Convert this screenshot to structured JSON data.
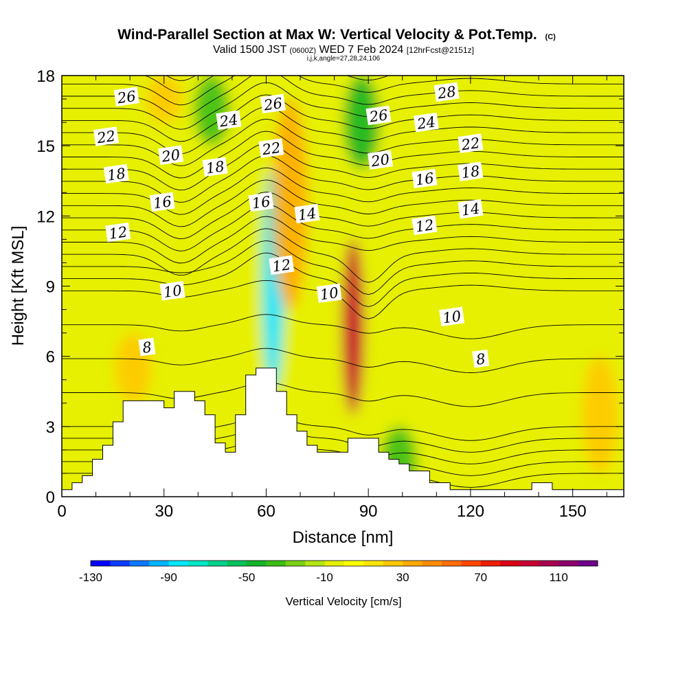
{
  "chart_data": {
    "type": "heatmap",
    "title": "Wind-Parallel Section at Max W: Vertical Velocity & Pot.Temp.",
    "title_mark": "(C)",
    "valid_prefix": "Valid 1500 JST",
    "valid_utc": "(0600Z)",
    "valid_date": "WED 7 Feb 2024",
    "forecast": "[12hrFcst@2151z]",
    "subtitle3": "i,j,k,angle=27,28,24,106",
    "xlabel": "Distance [nm]",
    "ylabel": "Height [Kft MSL]",
    "xlim": [
      0,
      165
    ],
    "ylim": [
      0,
      18
    ],
    "x_ticks": [
      "0",
      "30",
      "60",
      "90",
      "120",
      "150"
    ],
    "y_ticks": [
      "0",
      "3",
      "6",
      "9",
      "12",
      "15",
      "18"
    ],
    "colorbar": {
      "label": "Vertical Velocity [cm/s]",
      "tick_labels": [
        "-130",
        "-90",
        "-50",
        "-10",
        "30",
        "70",
        "110"
      ],
      "colors": [
        "#0000ff",
        "#0a3cff",
        "#0a78ff",
        "#00b4ff",
        "#00e6ff",
        "#00e6c8",
        "#00d28c",
        "#00c35a",
        "#14b428",
        "#3cbe14",
        "#78d214",
        "#b4e614",
        "#e6f000",
        "#ffff00",
        "#ffe600",
        "#ffc800",
        "#ffaa00",
        "#ff8c00",
        "#ff6e00",
        "#ff4600",
        "#f01e00",
        "#dc0014",
        "#c80032",
        "#aa0050",
        "#8c006e",
        "#6e008c"
      ]
    },
    "vertical_velocity_field": {
      "background_cm_s": -5,
      "features": [
        {
          "x": 62,
          "ytop": 14,
          "ybot": 4.5,
          "w_cm_s": -90
        },
        {
          "x": 85.5,
          "ytop": 11,
          "ybot": 3.5,
          "w_cm_s": 90
        },
        {
          "x": 67,
          "ytop": 17,
          "ybot": 8,
          "w_cm_s": 30
        },
        {
          "x": 99,
          "ytop": 3,
          "ybot": 0,
          "w_cm_s": -35
        },
        {
          "x": 21,
          "ytop": 7,
          "ybot": 4,
          "w_cm_s": 25
        },
        {
          "x": 88,
          "ytop": 18,
          "ybot": 14,
          "w_cm_s": -45
        },
        {
          "x": 44,
          "ytop": 18,
          "ybot": 15,
          "w_cm_s": -40
        },
        {
          "x": 30,
          "ytop": 18,
          "ybot": 16,
          "w_cm_s": 25
        },
        {
          "x": 158,
          "ytop": 6,
          "ybot": 1,
          "w_cm_s": 20
        }
      ]
    },
    "potential_temperature_contour_labels": [
      {
        "value": "26",
        "x": 19,
        "y": 17.1
      },
      {
        "value": "22",
        "x": 13,
        "y": 15.4
      },
      {
        "value": "24",
        "x": 49,
        "y": 16.1
      },
      {
        "value": "26",
        "x": 62,
        "y": 16.8
      },
      {
        "value": "20",
        "x": 32,
        "y": 14.6
      },
      {
        "value": "22",
        "x": 61.5,
        "y": 14.9
      },
      {
        "value": "18",
        "x": 16,
        "y": 13.8
      },
      {
        "value": "18",
        "x": 45,
        "y": 14.1
      },
      {
        "value": "16",
        "x": 29.5,
        "y": 12.6
      },
      {
        "value": "16",
        "x": 58.5,
        "y": 12.6
      },
      {
        "value": "14",
        "x": 72,
        "y": 12.1
      },
      {
        "value": "12",
        "x": 16.5,
        "y": 11.3
      },
      {
        "value": "12",
        "x": 64.5,
        "y": 9.9
      },
      {
        "value": "10",
        "x": 32.5,
        "y": 8.8
      },
      {
        "value": "10",
        "x": 78.5,
        "y": 8.7
      },
      {
        "value": "8",
        "x": 25,
        "y": 6.4
      },
      {
        "value": "26",
        "x": 93,
        "y": 16.3
      },
      {
        "value": "28",
        "x": 113,
        "y": 17.3
      },
      {
        "value": "24",
        "x": 107,
        "y": 16
      },
      {
        "value": "22",
        "x": 120,
        "y": 15.1
      },
      {
        "value": "20",
        "x": 93.5,
        "y": 14.4
      },
      {
        "value": "18",
        "x": 120,
        "y": 13.9
      },
      {
        "value": "16",
        "x": 106.5,
        "y": 13.6
      },
      {
        "value": "14",
        "x": 120,
        "y": 12.3
      },
      {
        "value": "12",
        "x": 106.5,
        "y": 11.6
      },
      {
        "value": "10",
        "x": 114.5,
        "y": 7.7
      },
      {
        "value": "8",
        "x": 123,
        "y": 5.9
      }
    ],
    "terrain_kft": [
      [
        0,
        0.3
      ],
      [
        3,
        0.6
      ],
      [
        6,
        0.9
      ],
      [
        9,
        1.6
      ],
      [
        12,
        2.2
      ],
      [
        15,
        3.2
      ],
      [
        18,
        4.1
      ],
      [
        30,
        3.8
      ],
      [
        33,
        4.5
      ],
      [
        39,
        4.1
      ],
      [
        42,
        3.5
      ],
      [
        45,
        2.3
      ],
      [
        48,
        1.9
      ],
      [
        51,
        3.5
      ],
      [
        54,
        5.2
      ],
      [
        57,
        5.5
      ],
      [
        63,
        4.5
      ],
      [
        66,
        3.5
      ],
      [
        69,
        2.8
      ],
      [
        72,
        2.2
      ],
      [
        75,
        1.9
      ],
      [
        84,
        2.5
      ],
      [
        93,
        1.9
      ],
      [
        96,
        1.6
      ],
      [
        99,
        1.4
      ],
      [
        102,
        1.1
      ],
      [
        108,
        0.6
      ],
      [
        114,
        0.3
      ],
      [
        138,
        0.6
      ],
      [
        144,
        0.3
      ],
      [
        165,
        0.3
      ]
    ]
  }
}
